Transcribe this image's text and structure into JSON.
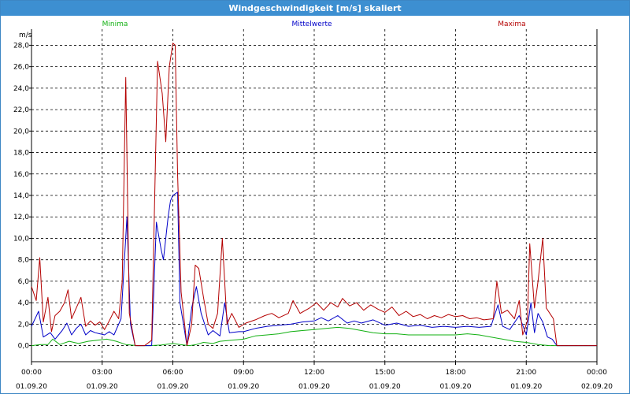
{
  "window": {
    "title": "Windgeschwindigkeit [m/s] skaliert"
  },
  "chart_data": {
    "type": "line",
    "title": "Windgeschwindigkeit [m/s] skaliert",
    "ylabel": "m/s",
    "ylim": [
      -1.5,
      29.5
    ],
    "yticks": [
      0,
      2,
      4,
      6,
      8,
      10,
      12,
      14,
      16,
      18,
      20,
      22,
      24,
      26,
      28
    ],
    "ytick_labels": [
      "0,0",
      "2,0",
      "4,0",
      "6,0",
      "8,0",
      "10,0",
      "12,0",
      "14,0",
      "16,0",
      "18,0",
      "20,0",
      "22,0",
      "24,0",
      "26,0",
      "28,0"
    ],
    "xlim_hours": [
      0,
      24
    ],
    "xticks": [
      {
        "h": 0,
        "time": "00:00",
        "date": "01.09.20"
      },
      {
        "h": 3,
        "time": "03:00",
        "date": "01.09.20"
      },
      {
        "h": 6,
        "time": "06:00",
        "date": "01.09.20"
      },
      {
        "h": 9,
        "time": "09:00",
        "date": "01.09.20"
      },
      {
        "h": 12,
        "time": "12:00",
        "date": "01.09.20"
      },
      {
        "h": 15,
        "time": "15:00",
        "date": "01.09.20"
      },
      {
        "h": 18,
        "time": "18:00",
        "date": "01.09.20"
      },
      {
        "h": 21,
        "time": "21:00",
        "date": "01.09.20"
      },
      {
        "h": 24,
        "time": "00:00",
        "date": "02.09.20"
      }
    ],
    "grid": true,
    "legend_position": "top",
    "series": [
      {
        "name": "Minima",
        "color": "#12b012",
        "points": [
          [
            0,
            0
          ],
          [
            0.4,
            0.1
          ],
          [
            0.7,
            0.1
          ],
          [
            0.9,
            0.6
          ],
          [
            1.2,
            0.1
          ],
          [
            1.6,
            0.4
          ],
          [
            2,
            0.2
          ],
          [
            2.4,
            0.4
          ],
          [
            2.8,
            0.5
          ],
          [
            3.2,
            0.6
          ],
          [
            3.6,
            0.4
          ],
          [
            4,
            0.1
          ],
          [
            4.5,
            0
          ],
          [
            5,
            0
          ],
          [
            5.5,
            0.05
          ],
          [
            6,
            0.2
          ],
          [
            6.3,
            0.1
          ],
          [
            6.7,
            0
          ],
          [
            7,
            0.1
          ],
          [
            7.3,
            0.3
          ],
          [
            7.7,
            0.2
          ],
          [
            8,
            0.4
          ],
          [
            8.5,
            0.5
          ],
          [
            9,
            0.6
          ],
          [
            9.5,
            0.9
          ],
          [
            10,
            1.0
          ],
          [
            10.5,
            1.1
          ],
          [
            11,
            1.3
          ],
          [
            11.5,
            1.4
          ],
          [
            12,
            1.5
          ],
          [
            12.5,
            1.6
          ],
          [
            13,
            1.7
          ],
          [
            13.5,
            1.6
          ],
          [
            14,
            1.4
          ],
          [
            14.5,
            1.2
          ],
          [
            15,
            1.1
          ],
          [
            15.5,
            1.1
          ],
          [
            16,
            1.0
          ],
          [
            16.5,
            1.0
          ],
          [
            17,
            1.0
          ],
          [
            17.5,
            1.0
          ],
          [
            18,
            1.0
          ],
          [
            18.5,
            1.1
          ],
          [
            19,
            1.0
          ],
          [
            19.5,
            0.8
          ],
          [
            20,
            0.6
          ],
          [
            20.5,
            0.4
          ],
          [
            21,
            0.3
          ],
          [
            21.5,
            0.1
          ],
          [
            22,
            0
          ],
          [
            22.3,
            0
          ],
          [
            23,
            0
          ],
          [
            24,
            0
          ]
        ]
      },
      {
        "name": "Mittelwerte",
        "color": "#0000c8",
        "points": [
          [
            0,
            1.8
          ],
          [
            0.3,
            3.2
          ],
          [
            0.5,
            0.8
          ],
          [
            0.8,
            1.2
          ],
          [
            1,
            0.6
          ],
          [
            1.3,
            1.4
          ],
          [
            1.5,
            2.1
          ],
          [
            1.7,
            1.0
          ],
          [
            1.9,
            1.6
          ],
          [
            2.1,
            2.0
          ],
          [
            2.3,
            1.0
          ],
          [
            2.5,
            1.4
          ],
          [
            2.7,
            1.2
          ],
          [
            2.9,
            1.1
          ],
          [
            3.1,
            1.0
          ],
          [
            3.3,
            1.3
          ],
          [
            3.5,
            1.0
          ],
          [
            3.8,
            2.5
          ],
          [
            4.05,
            12.0
          ],
          [
            4.2,
            2.0
          ],
          [
            4.4,
            0
          ],
          [
            4.8,
            0
          ],
          [
            5.1,
            0
          ],
          [
            5.3,
            11.5
          ],
          [
            5.5,
            9.0
          ],
          [
            5.6,
            8.0
          ],
          [
            5.8,
            12.0
          ],
          [
            5.9,
            13.5
          ],
          [
            6,
            14.0
          ],
          [
            6.2,
            14.3
          ],
          [
            6.3,
            4.0
          ],
          [
            6.6,
            0
          ],
          [
            6.8,
            3.5
          ],
          [
            7,
            5.5
          ],
          [
            7.2,
            3.0
          ],
          [
            7.5,
            1.0
          ],
          [
            7.7,
            1.4
          ],
          [
            8,
            0.9
          ],
          [
            8.2,
            4.0
          ],
          [
            8.4,
            1.2
          ],
          [
            8.8,
            1.3
          ],
          [
            9,
            1.3
          ],
          [
            9.5,
            1.6
          ],
          [
            10,
            1.8
          ],
          [
            10.5,
            1.9
          ],
          [
            11,
            2.0
          ],
          [
            11.5,
            2.2
          ],
          [
            12,
            2.3
          ],
          [
            12.3,
            2.6
          ],
          [
            12.6,
            2.3
          ],
          [
            13,
            2.8
          ],
          [
            13.4,
            2.1
          ],
          [
            13.7,
            2.3
          ],
          [
            14,
            2.1
          ],
          [
            14.5,
            2.4
          ],
          [
            15,
            1.9
          ],
          [
            15.5,
            2.1
          ],
          [
            16,
            1.8
          ],
          [
            16.5,
            1.9
          ],
          [
            17,
            1.7
          ],
          [
            17.5,
            1.8
          ],
          [
            18,
            1.7
          ],
          [
            18.5,
            1.8
          ],
          [
            19,
            1.7
          ],
          [
            19.5,
            1.8
          ],
          [
            19.8,
            3.8
          ],
          [
            20,
            1.8
          ],
          [
            20.3,
            1.5
          ],
          [
            20.7,
            2.8
          ],
          [
            21,
            1.0
          ],
          [
            21.2,
            4.0
          ],
          [
            21.35,
            1.2
          ],
          [
            21.5,
            3.0
          ],
          [
            21.7,
            2.2
          ],
          [
            21.9,
            0.8
          ],
          [
            22.1,
            0.6
          ],
          [
            22.3,
            0
          ],
          [
            23,
            0
          ],
          [
            24,
            0
          ]
        ]
      },
      {
        "name": "Maxima",
        "color": "#b40000",
        "points": [
          [
            0,
            5.5
          ],
          [
            0.2,
            4.2
          ],
          [
            0.35,
            8.2
          ],
          [
            0.5,
            2.2
          ],
          [
            0.7,
            4.5
          ],
          [
            0.85,
            1.3
          ],
          [
            1,
            2.8
          ],
          [
            1.2,
            3.2
          ],
          [
            1.4,
            4.0
          ],
          [
            1.55,
            5.2
          ],
          [
            1.7,
            2.5
          ],
          [
            1.9,
            3.5
          ],
          [
            2.1,
            4.5
          ],
          [
            2.3,
            1.8
          ],
          [
            2.5,
            2.3
          ],
          [
            2.7,
            1.9
          ],
          [
            2.9,
            2.2
          ],
          [
            3.1,
            1.5
          ],
          [
            3.3,
            2.3
          ],
          [
            3.5,
            3.2
          ],
          [
            3.7,
            2.5
          ],
          [
            3.85,
            6.0
          ],
          [
            4.0,
            25.0
          ],
          [
            4.15,
            3.0
          ],
          [
            4.4,
            0
          ],
          [
            4.8,
            0
          ],
          [
            5.1,
            0.5
          ],
          [
            5.35,
            26.5
          ],
          [
            5.55,
            23.5
          ],
          [
            5.7,
            19.0
          ],
          [
            5.85,
            26.0
          ],
          [
            6.0,
            28.2
          ],
          [
            6.1,
            28.0
          ],
          [
            6.2,
            16.0
          ],
          [
            6.35,
            5.0
          ],
          [
            6.6,
            0
          ],
          [
            6.8,
            2.0
          ],
          [
            6.95,
            7.5
          ],
          [
            7.1,
            7.2
          ],
          [
            7.3,
            4.5
          ],
          [
            7.5,
            2.0
          ],
          [
            7.7,
            1.6
          ],
          [
            7.9,
            3.0
          ],
          [
            8.1,
            10.0
          ],
          [
            8.3,
            2.0
          ],
          [
            8.5,
            3.0
          ],
          [
            8.8,
            1.7
          ],
          [
            9.1,
            2.1
          ],
          [
            9.5,
            2.4
          ],
          [
            9.9,
            2.8
          ],
          [
            10.2,
            3.0
          ],
          [
            10.5,
            2.6
          ],
          [
            10.9,
            3.0
          ],
          [
            11.1,
            4.2
          ],
          [
            11.4,
            3.0
          ],
          [
            11.8,
            3.5
          ],
          [
            12.1,
            4.0
          ],
          [
            12.4,
            3.3
          ],
          [
            12.7,
            4.0
          ],
          [
            13,
            3.6
          ],
          [
            13.2,
            4.4
          ],
          [
            13.5,
            3.7
          ],
          [
            13.8,
            4.0
          ],
          [
            14.1,
            3.3
          ],
          [
            14.4,
            3.8
          ],
          [
            14.7,
            3.4
          ],
          [
            15,
            3.1
          ],
          [
            15.3,
            3.6
          ],
          [
            15.6,
            2.8
          ],
          [
            15.9,
            3.2
          ],
          [
            16.2,
            2.7
          ],
          [
            16.5,
            2.9
          ],
          [
            16.8,
            2.5
          ],
          [
            17.1,
            2.8
          ],
          [
            17.4,
            2.6
          ],
          [
            17.7,
            2.9
          ],
          [
            18,
            2.7
          ],
          [
            18.3,
            2.8
          ],
          [
            18.6,
            2.5
          ],
          [
            18.9,
            2.6
          ],
          [
            19.2,
            2.4
          ],
          [
            19.6,
            2.5
          ],
          [
            19.75,
            6.0
          ],
          [
            19.95,
            3.0
          ],
          [
            20.2,
            3.3
          ],
          [
            20.5,
            2.5
          ],
          [
            20.7,
            4.2
          ],
          [
            20.85,
            1.0
          ],
          [
            21.05,
            2.3
          ],
          [
            21.15,
            9.5
          ],
          [
            21.35,
            3.5
          ],
          [
            21.5,
            6.0
          ],
          [
            21.7,
            10.0
          ],
          [
            21.85,
            3.5
          ],
          [
            22.0,
            3.0
          ],
          [
            22.15,
            2.5
          ],
          [
            22.3,
            0
          ],
          [
            23,
            0
          ],
          [
            24,
            0
          ]
        ]
      }
    ]
  }
}
